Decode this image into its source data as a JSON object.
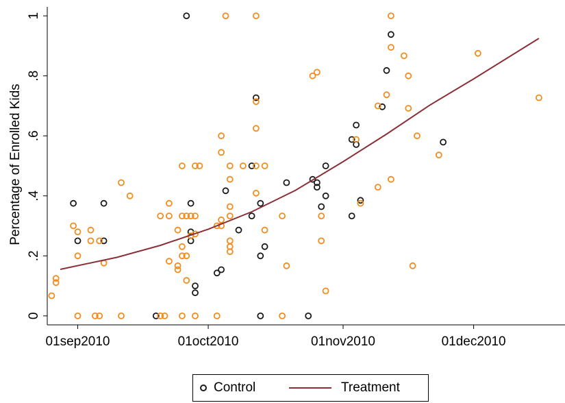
{
  "chart_data": {
    "type": "scatter",
    "title": "",
    "xlabel": "",
    "ylabel": "Percentage of Enrolled Kids",
    "x_axis": {
      "type": "date",
      "range": [
        "2010-08-25",
        "2010-12-22"
      ],
      "ticks": [
        {
          "value": "2010-09-01",
          "label": "01sep2010"
        },
        {
          "value": "2010-10-01",
          "label": "01oct2010"
        },
        {
          "value": "2010-11-01",
          "label": "01nov2010"
        },
        {
          "value": "2010-12-01",
          "label": "01dec2010"
        }
      ]
    },
    "y_axis": {
      "range": [
        -0.03,
        1.03
      ],
      "ticks": [
        {
          "value": 0,
          "label": "0"
        },
        {
          "value": 0.2,
          "label": ".2"
        },
        {
          "value": 0.4,
          "label": ".4"
        },
        {
          "value": 0.6,
          "label": ".6"
        },
        {
          "value": 0.8,
          "label": ".8"
        },
        {
          "value": 1,
          "label": "1"
        }
      ]
    },
    "grid": false,
    "legend": {
      "placement": "bottom",
      "entries": [
        {
          "label": "Control",
          "kind": "marker",
          "color": "#1a1a1a"
        },
        {
          "label": "Treatment",
          "kind": "line",
          "color": "#8b2f36"
        }
      ]
    },
    "colors": {
      "control": "#1a1a1a",
      "treatment_points": "#f28c1e",
      "fit_line": "#8b2f36"
    },
    "series": [
      {
        "group": "control",
        "points": [
          {
            "x": "2010-08-31",
            "y": 0.375
          },
          {
            "x": "2010-09-01",
            "y": 0.25
          },
          {
            "x": "2010-09-07",
            "y": 0.375
          },
          {
            "x": "2010-09-07",
            "y": 0.25
          },
          {
            "x": "2010-09-19",
            "y": 0.0
          },
          {
            "x": "2010-09-26",
            "y": 1.0
          },
          {
            "x": "2010-09-27",
            "y": 0.375
          },
          {
            "x": "2010-09-27",
            "y": 0.28
          },
          {
            "x": "2010-09-27",
            "y": 0.25
          },
          {
            "x": "2010-09-28",
            "y": 0.1
          },
          {
            "x": "2010-09-28",
            "y": 0.077
          },
          {
            "x": "2010-10-03",
            "y": 0.143
          },
          {
            "x": "2010-10-04",
            "y": 0.154
          },
          {
            "x": "2010-10-05",
            "y": 0.417
          },
          {
            "x": "2010-10-08",
            "y": 0.286
          },
          {
            "x": "2010-10-11",
            "y": 0.5
          },
          {
            "x": "2010-10-11",
            "y": 0.333
          },
          {
            "x": "2010-10-12",
            "y": 0.727
          },
          {
            "x": "2010-10-13",
            "y": 0.375
          },
          {
            "x": "2010-10-13",
            "y": 0.2
          },
          {
            "x": "2010-10-13",
            "y": 0.0
          },
          {
            "x": "2010-10-14",
            "y": 0.231
          },
          {
            "x": "2010-10-19",
            "y": 0.444
          },
          {
            "x": "2010-10-24",
            "y": 0.0
          },
          {
            "x": "2010-10-25",
            "y": 0.455
          },
          {
            "x": "2010-10-26",
            "y": 0.444
          },
          {
            "x": "2010-10-26",
            "y": 0.429
          },
          {
            "x": "2010-10-27",
            "y": 0.364
          },
          {
            "x": "2010-10-28",
            "y": 0.5
          },
          {
            "x": "2010-10-28",
            "y": 0.4
          },
          {
            "x": "2010-11-03",
            "y": 0.588
          },
          {
            "x": "2010-11-03",
            "y": 0.333
          },
          {
            "x": "2010-11-04",
            "y": 0.636
          },
          {
            "x": "2010-11-04",
            "y": 0.571
          },
          {
            "x": "2010-11-05",
            "y": 0.385
          },
          {
            "x": "2010-11-10",
            "y": 0.697
          },
          {
            "x": "2010-11-11",
            "y": 0.818
          },
          {
            "x": "2010-11-12",
            "y": 0.938
          },
          {
            "x": "2010-11-24",
            "y": 0.579
          }
        ]
      },
      {
        "group": "treatment",
        "points": [
          {
            "x": "2010-08-26",
            "y": 0.067
          },
          {
            "x": "2010-08-27",
            "y": 0.125
          },
          {
            "x": "2010-08-27",
            "y": 0.111
          },
          {
            "x": "2010-08-31",
            "y": 0.3
          },
          {
            "x": "2010-09-01",
            "y": 0.28
          },
          {
            "x": "2010-09-01",
            "y": 0.2
          },
          {
            "x": "2010-09-01",
            "y": 0.0
          },
          {
            "x": "2010-09-04",
            "y": 0.286
          },
          {
            "x": "2010-09-04",
            "y": 0.25
          },
          {
            "x": "2010-09-05",
            "y": 0.0
          },
          {
            "x": "2010-09-06",
            "y": 0.25
          },
          {
            "x": "2010-09-06",
            "y": 0.0
          },
          {
            "x": "2010-09-07",
            "y": 0.176
          },
          {
            "x": "2010-09-11",
            "y": 0.444
          },
          {
            "x": "2010-09-11",
            "y": 0.0
          },
          {
            "x": "2010-09-13",
            "y": 0.4
          },
          {
            "x": "2010-09-20",
            "y": 0.0
          },
          {
            "x": "2010-09-20",
            "y": 0.333
          },
          {
            "x": "2010-09-21",
            "y": 0.0
          },
          {
            "x": "2010-09-22",
            "y": 0.375
          },
          {
            "x": "2010-09-22",
            "y": 0.333
          },
          {
            "x": "2010-09-22",
            "y": 0.182
          },
          {
            "x": "2010-09-24",
            "y": 0.286
          },
          {
            "x": "2010-09-24",
            "y": 0.167
          },
          {
            "x": "2010-09-24",
            "y": 0.154
          },
          {
            "x": "2010-09-25",
            "y": 0.5
          },
          {
            "x": "2010-09-25",
            "y": 0.333
          },
          {
            "x": "2010-09-25",
            "y": 0.231
          },
          {
            "x": "2010-09-25",
            "y": 0.2
          },
          {
            "x": "2010-09-25",
            "y": 0.0
          },
          {
            "x": "2010-09-26",
            "y": 0.333
          },
          {
            "x": "2010-09-26",
            "y": 0.2
          },
          {
            "x": "2010-09-26",
            "y": 0.118
          },
          {
            "x": "2010-09-27",
            "y": 0.333
          },
          {
            "x": "2010-09-27",
            "y": 0.267
          },
          {
            "x": "2010-09-28",
            "y": 0.5
          },
          {
            "x": "2010-09-28",
            "y": 0.333
          },
          {
            "x": "2010-09-28",
            "y": 0.273
          },
          {
            "x": "2010-09-28",
            "y": 0.0
          },
          {
            "x": "2010-09-29",
            "y": 0.5
          },
          {
            "x": "2010-10-03",
            "y": 0.3
          },
          {
            "x": "2010-10-03",
            "y": 0.0
          },
          {
            "x": "2010-10-04",
            "y": 0.6
          },
          {
            "x": "2010-10-04",
            "y": 0.545
          },
          {
            "x": "2010-10-04",
            "y": 0.32
          },
          {
            "x": "2010-10-04",
            "y": 0.3
          },
          {
            "x": "2010-10-05",
            "y": 1.0
          },
          {
            "x": "2010-10-06",
            "y": 0.5
          },
          {
            "x": "2010-10-06",
            "y": 0.455
          },
          {
            "x": "2010-10-06",
            "y": 0.364
          },
          {
            "x": "2010-10-06",
            "y": 0.333
          },
          {
            "x": "2010-10-06",
            "y": 0.25
          },
          {
            "x": "2010-10-06",
            "y": 0.231
          },
          {
            "x": "2010-10-06",
            "y": 0.214
          },
          {
            "x": "2010-10-09",
            "y": 0.5
          },
          {
            "x": "2010-10-12",
            "y": 1.0
          },
          {
            "x": "2010-10-12",
            "y": 0.714
          },
          {
            "x": "2010-10-12",
            "y": 0.625
          },
          {
            "x": "2010-10-12",
            "y": 0.5
          },
          {
            "x": "2010-10-12",
            "y": 0.409
          },
          {
            "x": "2010-10-14",
            "y": 0.5
          },
          {
            "x": "2010-10-14",
            "y": 0.286
          },
          {
            "x": "2010-10-18",
            "y": 0.333
          },
          {
            "x": "2010-10-18",
            "y": 0.0
          },
          {
            "x": "2010-10-19",
            "y": 0.167
          },
          {
            "x": "2010-10-25",
            "y": 0.8
          },
          {
            "x": "2010-10-26",
            "y": 0.812
          },
          {
            "x": "2010-10-27",
            "y": 0.333
          },
          {
            "x": "2010-10-27",
            "y": 0.25
          },
          {
            "x": "2010-10-28",
            "y": 0.083
          },
          {
            "x": "2010-11-04",
            "y": 0.588
          },
          {
            "x": "2010-11-05",
            "y": 0.375
          },
          {
            "x": "2010-11-09",
            "y": 0.7
          },
          {
            "x": "2010-11-09",
            "y": 0.429
          },
          {
            "x": "2010-11-11",
            "y": 0.737
          },
          {
            "x": "2010-11-12",
            "y": 1.0
          },
          {
            "x": "2010-11-12",
            "y": 0.895
          },
          {
            "x": "2010-11-12",
            "y": 0.455
          },
          {
            "x": "2010-11-15",
            "y": 0.867
          },
          {
            "x": "2010-11-16",
            "y": 0.8
          },
          {
            "x": "2010-11-16",
            "y": 0.692
          },
          {
            "x": "2010-11-17",
            "y": 0.167
          },
          {
            "x": "2010-11-18",
            "y": 0.6
          },
          {
            "x": "2010-11-23",
            "y": 0.536
          },
          {
            "x": "2010-12-02",
            "y": 0.875
          },
          {
            "x": "2010-12-16",
            "y": 0.727
          }
        ]
      },
      {
        "name": "Treatment",
        "group": "fit",
        "kind": "line",
        "points": [
          {
            "x": "2010-08-28",
            "y": 0.155
          },
          {
            "x": "2010-09-10",
            "y": 0.195
          },
          {
            "x": "2010-09-20",
            "y": 0.235
          },
          {
            "x": "2010-10-01",
            "y": 0.289
          },
          {
            "x": "2010-10-11",
            "y": 0.347
          },
          {
            "x": "2010-10-21",
            "y": 0.418
          },
          {
            "x": "2010-11-01",
            "y": 0.514
          },
          {
            "x": "2010-11-11",
            "y": 0.606
          },
          {
            "x": "2010-11-21",
            "y": 0.703
          },
          {
            "x": "2010-12-01",
            "y": 0.79
          },
          {
            "x": "2010-12-16",
            "y": 0.925
          }
        ]
      }
    ]
  }
}
